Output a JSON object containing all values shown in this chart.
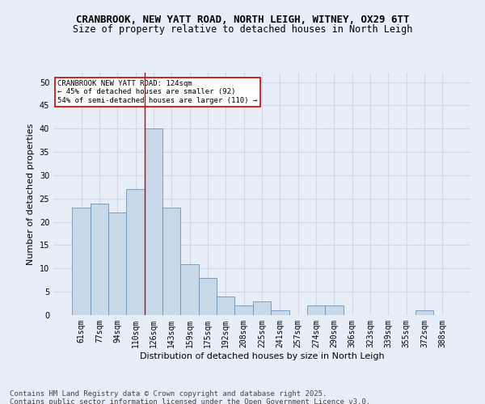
{
  "title": "CRANBROOK, NEW YATT ROAD, NORTH LEIGH, WITNEY, OX29 6TT",
  "subtitle": "Size of property relative to detached houses in North Leigh",
  "xlabel": "Distribution of detached houses by size in North Leigh",
  "ylabel": "Number of detached properties",
  "categories": [
    "61sqm",
    "77sqm",
    "94sqm",
    "110sqm",
    "126sqm",
    "143sqm",
    "159sqm",
    "175sqm",
    "192sqm",
    "208sqm",
    "225sqm",
    "241sqm",
    "257sqm",
    "274sqm",
    "290sqm",
    "306sqm",
    "323sqm",
    "339sqm",
    "355sqm",
    "372sqm",
    "388sqm"
  ],
  "values": [
    23,
    24,
    22,
    27,
    40,
    23,
    11,
    8,
    4,
    2,
    3,
    1,
    0,
    2,
    2,
    0,
    0,
    0,
    0,
    1,
    0
  ],
  "bar_color": "#c8d8e8",
  "bar_edge_color": "#7090b0",
  "grid_color": "#d0d8e8",
  "bg_color": "#e8eef8",
  "vline_color": "#cc0000",
  "annotation_text": "CRANBROOK NEW YATT ROAD: 124sqm\n← 45% of detached houses are smaller (92)\n54% of semi-detached houses are larger (110) →",
  "annotation_box_color": "#ffffff",
  "annotation_box_edge": "#cc0000",
  "ylim": [
    0,
    52
  ],
  "yticks": [
    0,
    5,
    10,
    15,
    20,
    25,
    30,
    35,
    40,
    45,
    50
  ],
  "footnote": "Contains HM Land Registry data © Crown copyright and database right 2025.\nContains public sector information licensed under the Open Government Licence v3.0.",
  "title_fontsize": 9,
  "subtitle_fontsize": 8.5,
  "footnote_fontsize": 6.5,
  "axis_label_fontsize": 8,
  "tick_fontsize": 7,
  "ylabel_fontsize": 8
}
